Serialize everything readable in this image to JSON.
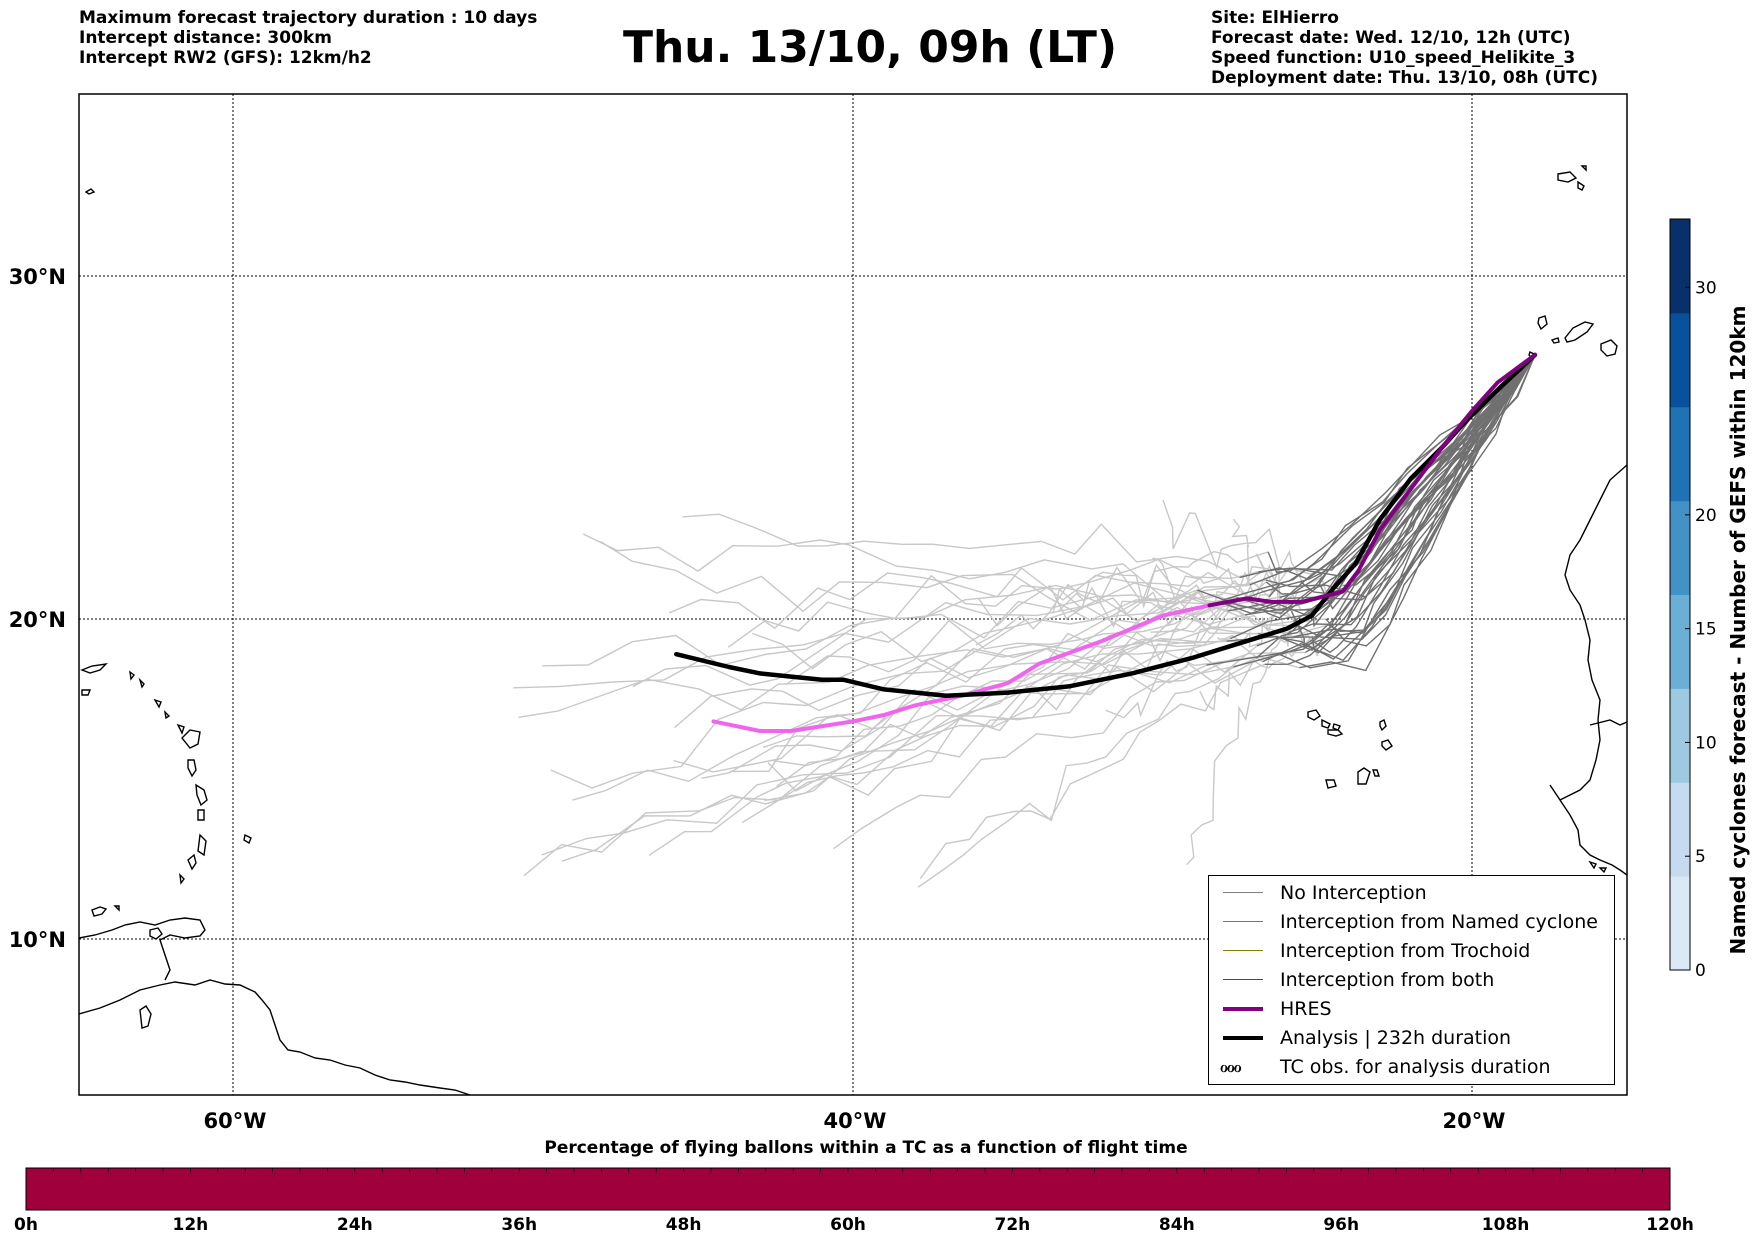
{
  "header": {
    "left": [
      "Maximum forecast trajectory duration : 10 days",
      "Intercept distance: 300km",
      "Intercept RW2 (GFS):  12km/h2"
    ],
    "title": "Thu. 13/10, 09h (LT)",
    "right": [
      "Site: ElHierro",
      "Forecast date: Wed. 12/10, 12h (UTC)",
      "Speed function: U10_speed_Helikite_3",
      "Deployment date: Thu. 13/10, 08h (UTC)"
    ]
  },
  "map": {
    "lon_range": [
      -65,
      -15
    ],
    "lat_range": [
      5,
      34
    ],
    "lat_labels": [
      "30°N",
      "20°N",
      "10°N"
    ],
    "lat_values": [
      30,
      20,
      10
    ],
    "lon_labels": [
      "60°W",
      "40°W",
      "20°W"
    ],
    "lon_values": [
      -60,
      -40,
      -20
    ],
    "grid": "dotted"
  },
  "colorbar": {
    "title": "Named cyclones forecast - Number of GEFS within 120km",
    "range": [
      0,
      33
    ],
    "ticks": [
      "0",
      "5",
      "10",
      "15",
      "20",
      "30"
    ],
    "tick_values": [
      0,
      5,
      10,
      15,
      20,
      30
    ],
    "colors_low_to_high": [
      "#dbe9f6",
      "#c6dbef",
      "#9ecae1",
      "#6baed6",
      "#4292c6",
      "#2171b5",
      "#08519c",
      "#08306b"
    ]
  },
  "legend": {
    "items": [
      {
        "label": "No Interception",
        "color": "#808080"
      },
      {
        "label": "Interception from Named cyclone",
        "color": "#ff4500"
      },
      {
        "label": "Interception from Trochoid",
        "color": "#808000"
      },
      {
        "label": "Interception from both",
        "color": "#008000"
      },
      {
        "label": "HRES",
        "color": "#800080"
      },
      {
        "label": "Analysis | 232h duration",
        "color": "#000000"
      },
      {
        "label": "TC obs. for analysis duration",
        "symbol": "ℴℴℴ"
      }
    ]
  },
  "progress_bar": {
    "title": "Percentage of flying ballons within a TC as a function of flight time",
    "color": "#a0003c",
    "ticks": [
      "0h",
      "12h",
      "24h",
      "36h",
      "48h",
      "60h",
      "72h",
      "84h",
      "96h",
      "108h",
      "120h"
    ],
    "fill_percent": 100
  },
  "chart_data": {
    "type": "line",
    "site_lonlat": [
      -18,
      27.7
    ],
    "series": [
      {
        "name": "HRES",
        "color": "#800080",
        "lonlat": [
          [
            -18,
            27.7
          ],
          [
            -19.2,
            26.9
          ],
          [
            -20,
            26.1
          ],
          [
            -21,
            25
          ],
          [
            -22,
            23.8
          ],
          [
            -23,
            22.6
          ],
          [
            -23.7,
            21.4
          ],
          [
            -24.2,
            20.8
          ],
          [
            -25.5,
            20.5
          ],
          [
            -26.5,
            20.5
          ],
          [
            -27.3,
            20.6
          ],
          [
            -28.5,
            20.4
          ]
        ]
      },
      {
        "name": "Analysis | 232h duration",
        "color": "#000000",
        "lonlat": [
          [
            -18,
            27.7
          ],
          [
            -19.3,
            26.6
          ],
          [
            -20.2,
            25.8
          ],
          [
            -21,
            25
          ],
          [
            -22,
            24.1
          ],
          [
            -23,
            22.9
          ],
          [
            -23.8,
            21.6
          ],
          [
            -24.5,
            20.9
          ],
          [
            -25.2,
            20.1
          ],
          [
            -26,
            19.7
          ],
          [
            -27,
            19.4
          ],
          [
            -29,
            18.8
          ],
          [
            -31,
            18.3
          ],
          [
            -33,
            17.9
          ],
          [
            -35,
            17.7
          ],
          [
            -37,
            17.6
          ],
          [
            -39,
            17.8
          ],
          [
            -40.3,
            18.1
          ],
          [
            -41,
            18.1
          ],
          [
            -42,
            18.2
          ],
          [
            -43,
            18.3
          ],
          [
            -44,
            18.5
          ],
          [
            -45.7,
            18.9
          ]
        ]
      },
      {
        "name": "HRES (forecast extension)",
        "color": "#ee66ee",
        "lonlat": [
          [
            -28.5,
            20.4
          ],
          [
            -30,
            20.1
          ],
          [
            -32,
            19.3
          ],
          [
            -34,
            18.6
          ],
          [
            -35,
            18
          ],
          [
            -36.5,
            17.6
          ],
          [
            -38,
            17.3
          ],
          [
            -39,
            17
          ],
          [
            -40,
            16.8
          ],
          [
            -42,
            16.5
          ],
          [
            -43,
            16.5
          ],
          [
            -44.5,
            16.8
          ]
        ]
      }
    ]
  }
}
